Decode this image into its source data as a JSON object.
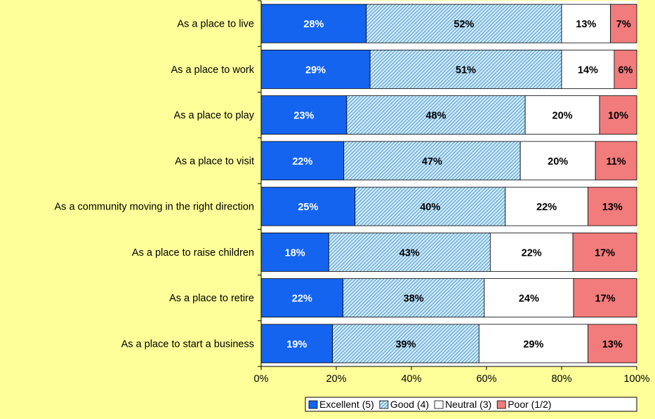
{
  "chart_data": {
    "type": "bar",
    "orientation": "horizontal",
    "stacked": true,
    "percent_stacked": true,
    "categories": [
      "As a place to live",
      "As a place to work",
      "As a place to play",
      "As a place to visit",
      "As a community moving in the right direction",
      "As a place to raise children",
      "As a place to retire",
      "As a place to start a business"
    ],
    "series": [
      {
        "name": "Excellent (5)",
        "color": "#1464F0",
        "pattern": "solid",
        "label_color": "#FFFFFF",
        "values": [
          28,
          29,
          23,
          22,
          25,
          18,
          22,
          19
        ]
      },
      {
        "name": "Good (4)",
        "color": "#99CCEE",
        "pattern": "diagonal-hatch",
        "label_color": "#000000",
        "values": [
          52,
          51,
          48,
          47,
          40,
          43,
          38,
          39
        ]
      },
      {
        "name": "Neutral (3)",
        "color": "#FFFFFF",
        "pattern": "solid",
        "label_color": "#000000",
        "values": [
          13,
          14,
          20,
          20,
          22,
          22,
          24,
          29
        ]
      },
      {
        "name": "Poor (1/2)",
        "color": "#F27C7C",
        "pattern": "solid",
        "label_color": "#000000",
        "values": [
          7,
          6,
          10,
          11,
          13,
          17,
          17,
          13
        ]
      }
    ],
    "data_label_format": "{v}%",
    "xlim": [
      0,
      100
    ],
    "xticks": [
      0,
      20,
      40,
      60,
      80,
      100
    ],
    "xtick_labels": [
      "0%",
      "20%",
      "40%",
      "60%",
      "80%",
      "100%"
    ],
    "title": "",
    "xlabel": "",
    "ylabel": "",
    "grid": false,
    "legend_position": "bottom-right",
    "background_color": "#FFFF99",
    "plot_background_color": "#FFFFFF"
  }
}
